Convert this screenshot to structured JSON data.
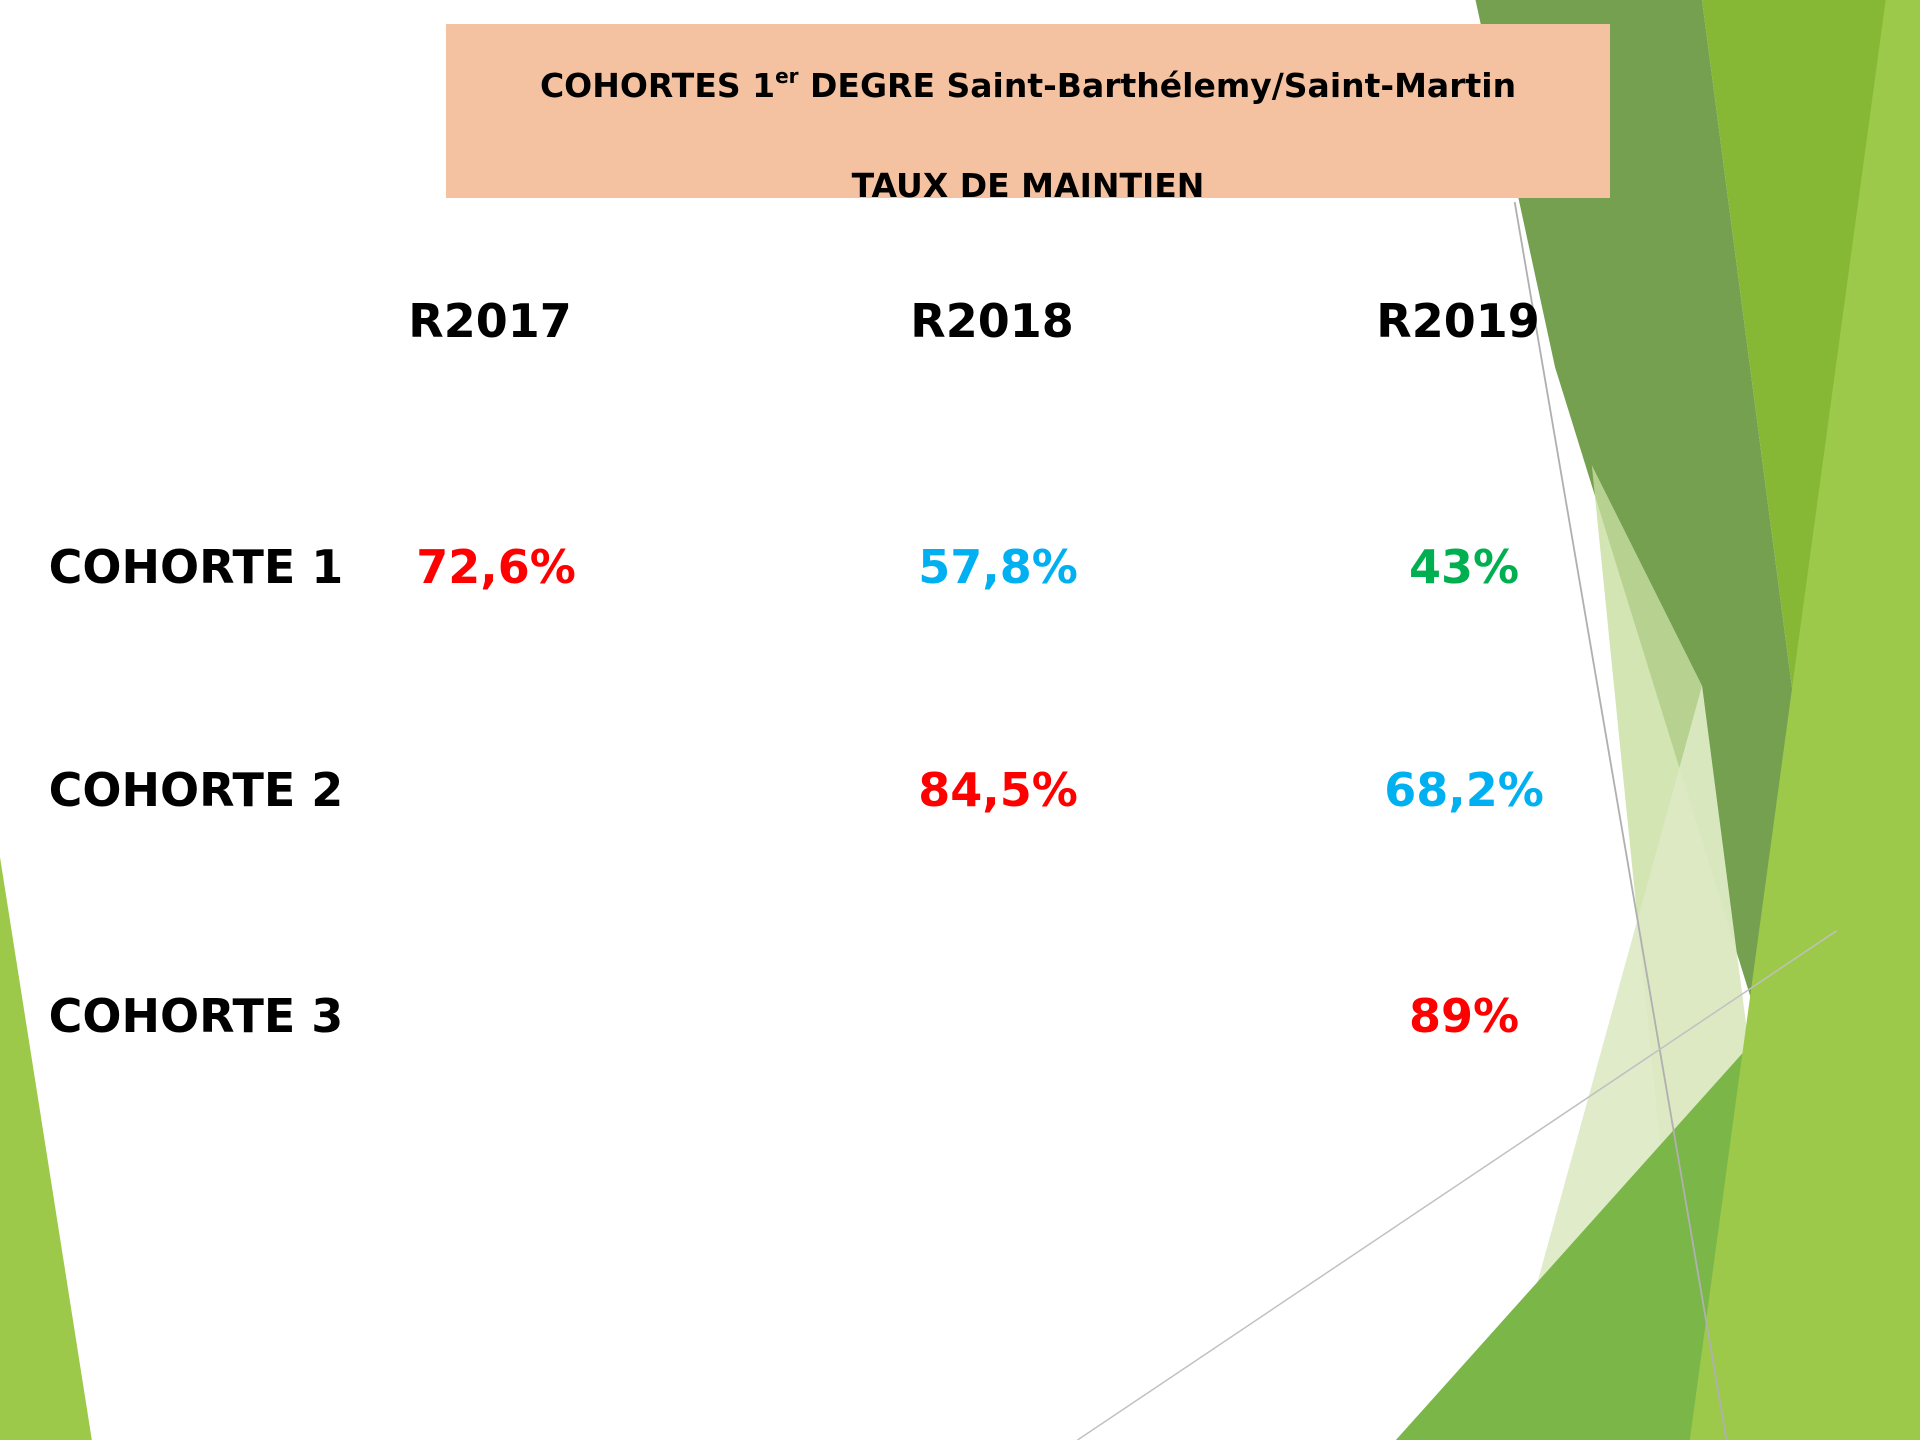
{
  "header": {
    "title": "COHORTES 1",
    "title_superscript": "er",
    "title_rest": " DEGRE Saint-Barthélemy/Saint-Martin",
    "subtitle": "TAUX DE MAINTIEN"
  },
  "table": {
    "columns": [
      "R2017",
      "R2018",
      "R2019"
    ],
    "rows": [
      {
        "label": "COHORTE 1",
        "cells": [
          {
            "text": "72,6%",
            "color": "#ff0000"
          },
          {
            "text": "57,8%",
            "color": "#00b0f0"
          },
          {
            "text": "43%",
            "color": "#00b050"
          }
        ]
      },
      {
        "label": "COHORTE 2",
        "cells": [
          null,
          {
            "text": "84,5%",
            "color": "#ff0000"
          },
          {
            "text": "68,2%",
            "color": "#00b0f0"
          }
        ]
      },
      {
        "label": "COHORTE 3",
        "cells": [
          null,
          null,
          {
            "text": "89%",
            "color": "#ff0000"
          }
        ]
      }
    ]
  }
}
